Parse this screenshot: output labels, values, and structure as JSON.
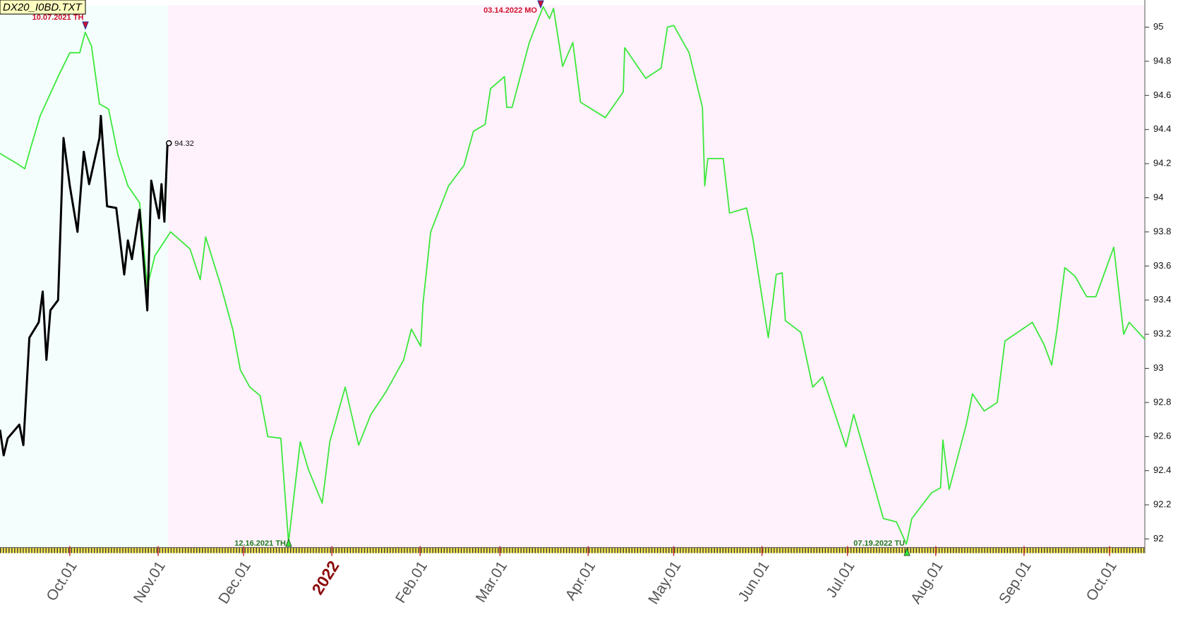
{
  "chart_data": {
    "type": "line",
    "file_label": "DX20_I0BD.TXT",
    "annotations": [
      "10.07.2021 TH",
      "03.14.2022 MO",
      "12.16.2021 TH",
      "07.19.2022 TU"
    ],
    "series": [
      {
        "color": "#3be83b",
        "x": [
          -24.5,
          -18.5,
          -15.8,
          -13.6,
          -10.4,
          -4.1,
          0,
          3.5,
          5.4,
          7.6,
          10.4,
          13.6,
          16.9,
          20.4,
          24.5,
          27.2,
          29.9,
          35.4,
          42.2,
          45.8,
          47.7,
          53.1,
          57.2,
          59.9,
          63.2,
          66.8,
          69.5,
          74.1,
          76.8,
          80.9,
          83.7,
          88.6,
          91.3,
          96.7,
          101.4,
          105.7,
          110.9,
          117.2,
          119.9,
          123.2,
          124.0,
          126.7,
          133.0,
          138.4,
          141.7,
          145.8,
          147.7,
          152.6,
          153.4,
          155.3,
          161.3,
          166.2,
          168.4,
          169.8,
          173.0,
          176.6,
          179.3,
          188.0,
          194.3,
          194.8,
          202.2,
          207.6,
          209.8,
          212.0,
          217.4,
          222.1,
          222.9,
          224.0,
          229.4,
          231.6,
          237.6,
          239.8,
          245.2,
          248.0,
          250.1,
          251.2,
          256.7,
          260.8,
          264.3,
          272.5,
          275.2,
          281.2,
          285.6,
          290.2,
          293.7,
          295.6,
          302.5,
          305.7,
          306.5,
          308.7,
          314.7,
          316.9,
          321.0,
          325.6,
          328.3,
          337.9,
          342.0,
          344.7,
          346.6,
          349.3,
          352.9,
          357.0,
          360.2,
          366.5,
          370.0,
          371.9,
          377.4
        ],
        "values": [
          94.26,
          94.2,
          94.17,
          94.3,
          94.48,
          94.71,
          94.85,
          94.85,
          94.97,
          94.89,
          94.55,
          94.52,
          94.25,
          94.07,
          93.97,
          93.48,
          93.66,
          93.8,
          93.7,
          93.52,
          93.77,
          93.48,
          93.23,
          92.99,
          92.89,
          92.84,
          92.6,
          92.59,
          91.98,
          92.57,
          92.41,
          92.21,
          92.57,
          92.89,
          92.55,
          92.73,
          92.86,
          93.05,
          93.23,
          93.13,
          93.38,
          93.8,
          94.07,
          94.19,
          94.39,
          94.43,
          94.64,
          94.71,
          94.53,
          94.53,
          94.91,
          95.12,
          95.05,
          95.11,
          94.77,
          94.91,
          94.56,
          94.47,
          94.62,
          94.88,
          94.7,
          94.76,
          95.0,
          95.01,
          94.85,
          94.53,
          94.07,
          94.23,
          94.23,
          93.91,
          93.94,
          93.76,
          93.18,
          93.55,
          93.56,
          93.28,
          93.21,
          92.89,
          92.95,
          92.54,
          92.73,
          92.38,
          92.12,
          92.1,
          91.97,
          92.12,
          92.27,
          92.3,
          92.58,
          92.29,
          92.67,
          92.85,
          92.75,
          92.8,
          93.16,
          93.27,
          93.14,
          93.02,
          93.23,
          93.59,
          93.54,
          93.42,
          93.42,
          93.71,
          93.2,
          93.27,
          93.17
        ]
      },
      {
        "color": "#000000",
        "x": [
          -24.5,
          -23.2,
          -21.8,
          -17.7,
          -16.3,
          -14.2,
          -10.9,
          -9.5,
          -8.2,
          -6.8,
          -4.1,
          -2.2,
          0,
          2.7,
          4.9,
          6.8,
          10.4,
          10.9,
          13.1,
          16.3,
          19.1,
          20.4,
          21.8,
          24.5,
          27.2,
          28.6,
          31.3,
          32.2,
          33.2,
          34.3
        ],
        "values": [
          92.64,
          92.49,
          92.59,
          92.67,
          92.55,
          93.18,
          93.27,
          93.45,
          93.05,
          93.34,
          93.4,
          94.35,
          94.07,
          93.8,
          94.27,
          94.08,
          94.35,
          94.48,
          93.95,
          93.94,
          93.55,
          93.75,
          93.64,
          93.93,
          93.34,
          94.1,
          93.88,
          94.08,
          93.86,
          94.32
        ]
      }
    ],
    "xlim": [
      -24.5,
      377.4
    ],
    "xticks": [
      {
        "value": 0,
        "label": "Oct.01"
      },
      {
        "value": 31,
        "label": "Nov.01"
      },
      {
        "value": 61,
        "label": "Dec.01"
      },
      {
        "value": 92,
        "label": "2022"
      },
      {
        "value": 123,
        "label": "Feb.01"
      },
      {
        "value": 151,
        "label": "Mar.01"
      },
      {
        "value": 182,
        "label": "Apr.01"
      },
      {
        "value": 212,
        "label": "May.01"
      },
      {
        "value": 243,
        "label": "Jun.01"
      },
      {
        "value": 273,
        "label": "Jul.01"
      },
      {
        "value": 304,
        "label": "Aug.01"
      },
      {
        "value": 335,
        "label": "Sep.01"
      },
      {
        "value": 365,
        "label": "Oct.01"
      }
    ],
    "ylim": [
      91.95,
      95.12
    ],
    "yticks": [
      92,
      92.2,
      92.4,
      92.6,
      92.8,
      93,
      93.2,
      93.4,
      93.6,
      93.8,
      94,
      94.2,
      94.4,
      94.6,
      94.8,
      95
    ]
  }
}
